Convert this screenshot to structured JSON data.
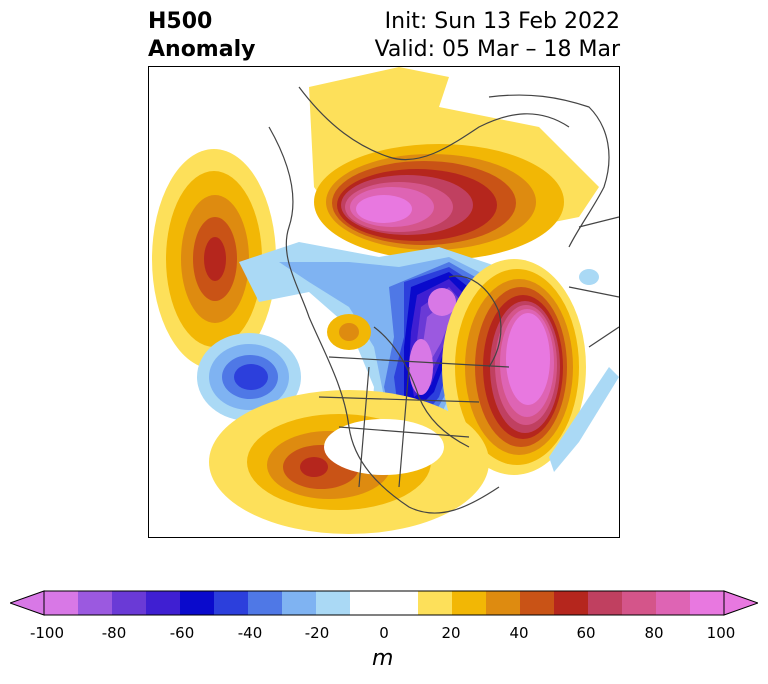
{
  "header": {
    "title_line1": "H500",
    "title_line2": "Anomaly",
    "init": "Init: Sun 13 Feb 2022",
    "valid": "Valid: 05 Mar – 18 Mar"
  },
  "colorbar": {
    "ticks": [
      "-100",
      "-80",
      "-60",
      "-40",
      "-20",
      "0",
      "20",
      "40",
      "60",
      "80",
      "100"
    ],
    "unit": "m",
    "range": [
      -100,
      100
    ],
    "colors": [
      "#d878e6",
      "#9b59e0",
      "#6a3ad6",
      "#3f1fd2",
      "#0a0acc",
      "#2c3fdc",
      "#4f78e6",
      "#7fb3f2",
      "#aad9f5",
      "#ffffff",
      "#ffffff",
      "#fde05a",
      "#f2b705",
      "#de8b10",
      "#c95316",
      "#b5261d",
      "#c04060",
      "#d4558a",
      "#de64b4",
      "#e878e0"
    ]
  },
  "map": {
    "projection": "polar stereographic",
    "features": [
      "ridge-alaska-arctic",
      "trough-central-canada",
      "ridge-north-atlantic",
      "ridge-north-pacific",
      "trough-gulf-of-alaska",
      "ridge-southwest-us"
    ]
  }
}
